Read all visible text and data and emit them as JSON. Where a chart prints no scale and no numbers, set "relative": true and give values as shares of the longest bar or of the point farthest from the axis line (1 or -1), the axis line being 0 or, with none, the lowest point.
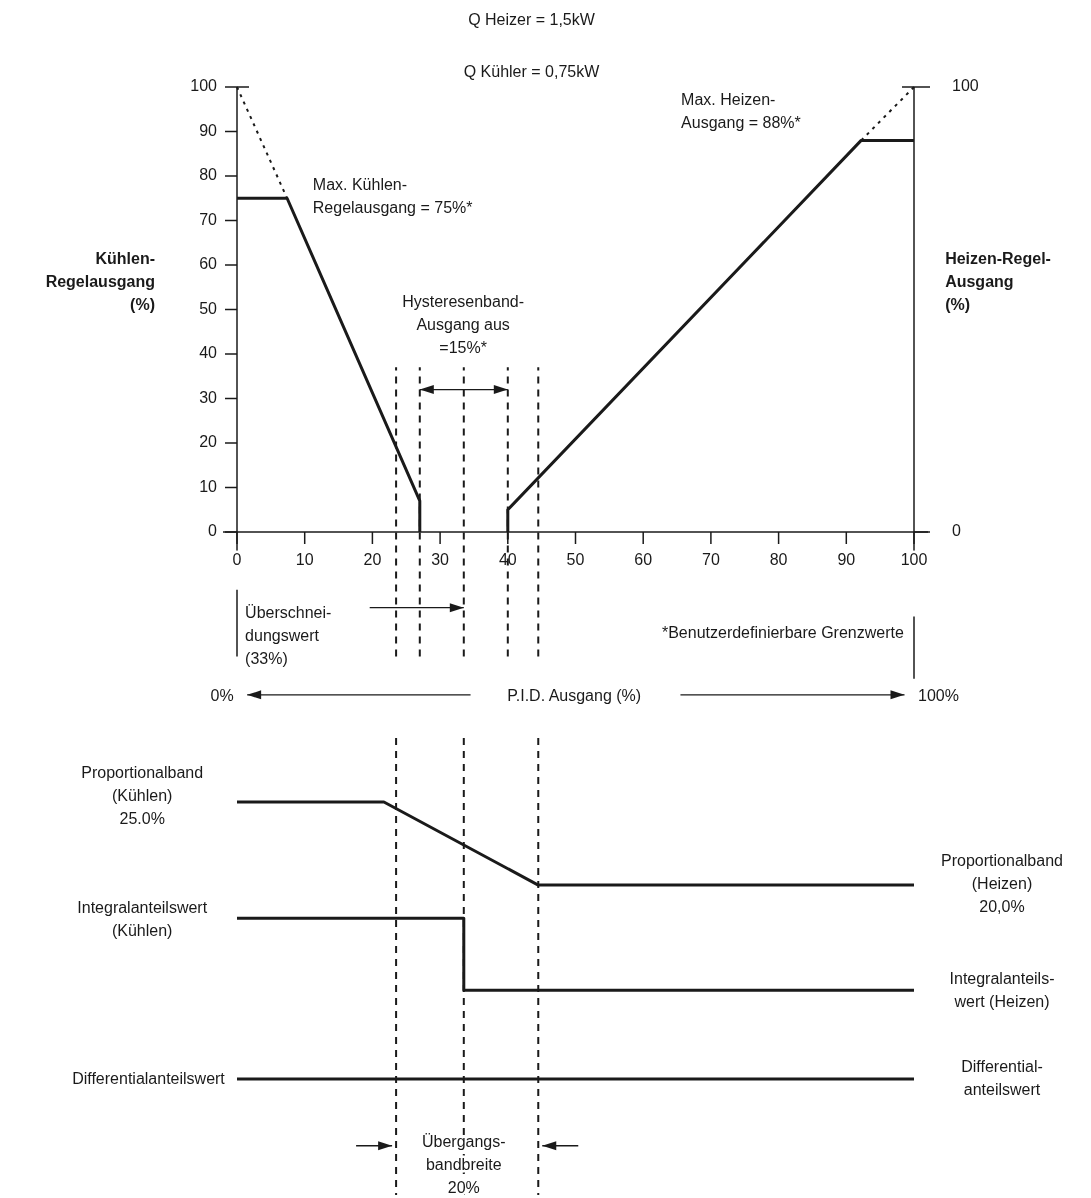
{
  "chart_data": [
    {
      "type": "line",
      "title": "Q Heizer = 1,5kW",
      "subtitle": "Q Kühler = 0,75kW",
      "ylabel": "Kühlen-\nRegelausgang\n(%)",
      "y2label": "Heizen-Regel-\nAusgang\n(%)",
      "xlim": [
        0,
        100
      ],
      "xticks": [
        0,
        10,
        20,
        30,
        40,
        50,
        60,
        70,
        80,
        90,
        100
      ],
      "ylim": [
        0,
        100
      ],
      "yticks": [
        0,
        10,
        20,
        30,
        40,
        50,
        60,
        70,
        80,
        90,
        100
      ],
      "y2lim": [
        0,
        100
      ],
      "y2ticks": [
        0,
        100
      ],
      "grid": false,
      "marker": "none",
      "series": [
        {
          "color": "#1a1a1a",
          "line_style": "solid",
          "x": [
            0,
            7.4,
            27,
            27
          ],
          "values": [
            75,
            75,
            7,
            0
          ]
        },
        {
          "color": "#1a1a1a",
          "line_style": "dotted",
          "x": [
            0,
            7.4
          ],
          "values": [
            100,
            75
          ]
        },
        {
          "color": "#1a1a1a",
          "line_style": "solid",
          "x": [
            40,
            40,
            92.2,
            100
          ],
          "values": [
            0,
            5,
            88,
            88
          ]
        },
        {
          "color": "#1a1a1a",
          "line_style": "dotted",
          "x": [
            92.2,
            100
          ],
          "values": [
            88,
            100
          ]
        }
      ],
      "ref_lines": [
        {
          "axis": "x",
          "value": 23.5,
          "line_style": "dashed"
        },
        {
          "axis": "x",
          "value": 27,
          "line_style": "dashed"
        },
        {
          "axis": "x",
          "value": 33.5,
          "line_style": "dashed"
        },
        {
          "axis": "x",
          "value": 40,
          "line_style": "dashed"
        },
        {
          "axis": "x",
          "value": 44.5,
          "line_style": "dashed"
        }
      ],
      "annotations": [
        "Max. Kühlen-\nRegelausgang = 75%*",
        "Max. Heizen-\nAusgang = 88%*",
        "Hysteresenband-\nAusgang aus\n=15%*",
        "Überschnei-\ndungswert\n(33%)",
        "*Benutzerdefinierbare Grenzwerte",
        "0%",
        "P.I.D. Ausgang (%)",
        "100%"
      ]
    },
    {
      "type": "line",
      "relative": true,
      "xlim": [
        0,
        100
      ],
      "marker": "none",
      "series": [
        {
          "color": "#1a1a1a",
          "x": [
            0,
            21.7,
            44.5,
            100
          ],
          "values": [
            1,
            1,
            0.7,
            0.7
          ]
        },
        {
          "color": "#1a1a1a",
          "x": [
            0,
            33.5,
            33.5,
            100
          ],
          "values": [
            0.58,
            0.58,
            0.32,
            0.32
          ]
        },
        {
          "color": "#1a1a1a",
          "x": [
            0,
            100
          ],
          "values": [
            0,
            0
          ]
        }
      ],
      "ref_lines": [
        {
          "axis": "x",
          "value": 23.5,
          "line_style": "dashed"
        },
        {
          "axis": "x",
          "value": 33.5,
          "line_style": "dashed"
        },
        {
          "axis": "x",
          "value": 44.5,
          "line_style": "dashed"
        }
      ],
      "annotations": [
        "Proportionalband\n(Kühlen)\n25.0%",
        "Integralanteilswert\n(Kühlen)",
        "Differentialanteilswert",
        "Proportionalband\n(Heizen)\n20,0%",
        "Integralanteils-\nwert (Heizen)",
        "Differential-\nanteilswert",
        "Übergangs-\nbandbreite\n20%"
      ]
    }
  ]
}
